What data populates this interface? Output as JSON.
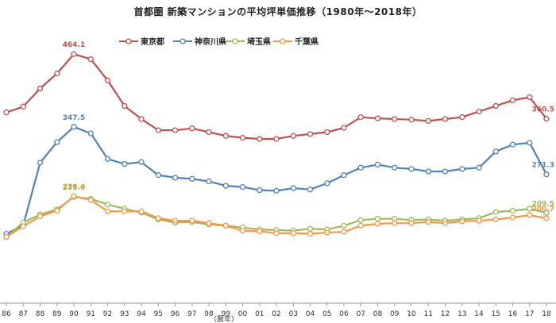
{
  "chart_data": {
    "type": "line",
    "title": "首都圏 新築マンションの平均坪単価推移（1980年～2018年）",
    "xlabel": "（暦年）",
    "ylabel": "",
    "categories": [
      "86",
      "87",
      "88",
      "89",
      "90",
      "91",
      "92",
      "93",
      "94",
      "95",
      "96",
      "97",
      "98",
      "99",
      "00",
      "01",
      "02",
      "03",
      "04",
      "05",
      "06",
      "07",
      "08",
      "09",
      "10",
      "11",
      "12",
      "13",
      "14",
      "15",
      "16",
      "17",
      "18"
    ],
    "ylim": [
      80,
      500
    ],
    "grid": false,
    "legend_position": "top-right",
    "series": [
      {
        "name": "東京都",
        "color": "#c0504d",
        "values": [
          370.6,
          380,
          409,
          433,
          464.1,
          456,
          422,
          381,
          360,
          342,
          342,
          345,
          339,
          333,
          330,
          328,
          328,
          333,
          336,
          339,
          346,
          363,
          361,
          360,
          359,
          357,
          360,
          363,
          372,
          381,
          390,
          395,
          360.5
        ]
      },
      {
        "name": "神奈川県",
        "color": "#4f81bd",
        "values": [
          176,
          190,
          290,
          323,
          347.5,
          337,
          296,
          288,
          291,
          270,
          266,
          264,
          260,
          253,
          251,
          246,
          245,
          249,
          247,
          257,
          270,
          282,
          287,
          282,
          280,
          276,
          276,
          280,
          282,
          308,
          319,
          322,
          271.3
        ]
      },
      {
        "name": "埼玉県",
        "color": "#9bbb59",
        "values": [
          171,
          194,
          207,
          215,
          235.0,
          232,
          223,
          216,
          210,
          199,
          194,
          195,
          191,
          189,
          186,
          183,
          182,
          181,
          184,
          183,
          189,
          198,
          200,
          200,
          198,
          199,
          197,
          199,
          201,
          211,
          213,
          216,
          209.5
        ]
      },
      {
        "name": "千葉県",
        "color": "#f79646",
        "values": [
          171,
          188,
          204,
          213,
          236.4,
          230,
          212,
          212,
          212,
          201,
          197,
          197,
          193,
          189,
          181,
          180,
          177,
          177,
          176,
          178,
          179,
          189,
          192,
          193,
          193,
          195,
          193,
          196,
          197,
          199,
          202,
          206,
          200.7
        ]
      }
    ],
    "data_labels": [
      {
        "series": 0,
        "index": 4,
        "text": "464.1"
      },
      {
        "series": 1,
        "index": 4,
        "text": "347.5"
      },
      {
        "series": 3,
        "index": 4,
        "text": "236.4"
      },
      {
        "series": 2,
        "index": 4,
        "text": "235.0"
      },
      {
        "series": 0,
        "index": 32,
        "text": "360.5"
      },
      {
        "series": 1,
        "index": 32,
        "text": "271.3"
      },
      {
        "series": 2,
        "index": 32,
        "text": "209.5"
      },
      {
        "series": 3,
        "index": 32,
        "text": "200.7"
      }
    ]
  }
}
